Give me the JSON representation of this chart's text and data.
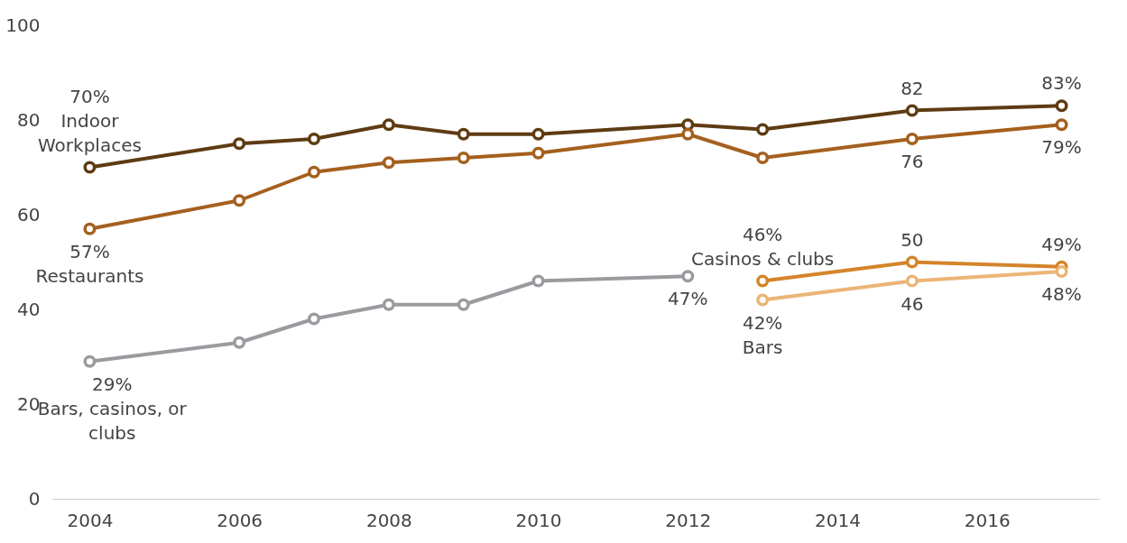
{
  "chart_data": {
    "type": "line",
    "xlim": [
      2003.5,
      2017.5
    ],
    "xticks": [
      2004,
      2006,
      2008,
      2010,
      2012,
      2014,
      2016
    ],
    "ylim": [
      0,
      100
    ],
    "yticks": [
      0,
      20,
      40,
      60,
      80,
      100
    ],
    "grid": false,
    "marker": "circle",
    "line_style": "solid",
    "series": [
      {
        "name": "Indoor Workplaces",
        "color": "#5e3b12",
        "x": [
          2004,
          2006,
          2007,
          2008,
          2009,
          2010,
          2012,
          2013,
          2015,
          2017
        ],
        "values": [
          70,
          75,
          76,
          79,
          77,
          77,
          79,
          78,
          82,
          83
        ],
        "value_labels": [
          "70%",
          null,
          null,
          null,
          null,
          null,
          null,
          null,
          "82",
          "83%"
        ]
      },
      {
        "name": "Restaurants",
        "color": "#a4601e",
        "x": [
          2004,
          2006,
          2007,
          2008,
          2009,
          2010,
          2012,
          2013,
          2015,
          2017
        ],
        "values": [
          57,
          63,
          69,
          71,
          72,
          73,
          77,
          72,
          76,
          79
        ],
        "value_labels": [
          "57%",
          null,
          null,
          null,
          null,
          null,
          null,
          null,
          "76",
          "79%"
        ]
      },
      {
        "name": "Bars, casinos, or clubs",
        "color": "#9b9a9f",
        "x": [
          2004,
          2006,
          2007,
          2008,
          2009,
          2010,
          2012
        ],
        "values": [
          29,
          33,
          38,
          41,
          41,
          46,
          47
        ],
        "value_labels": [
          "29%",
          null,
          null,
          null,
          null,
          null,
          "47%"
        ]
      },
      {
        "name": "Casinos & clubs",
        "color": "#d4842a",
        "x": [
          2013,
          2015,
          2017
        ],
        "values": [
          46,
          50,
          49
        ],
        "value_labels": [
          "46%",
          "50",
          "49%"
        ]
      },
      {
        "name": "Bars",
        "color": "#ebb577",
        "x": [
          2013,
          2015,
          2017
        ],
        "values": [
          42,
          46,
          48
        ],
        "value_labels": [
          "42%",
          "46",
          "48%"
        ]
      }
    ]
  }
}
